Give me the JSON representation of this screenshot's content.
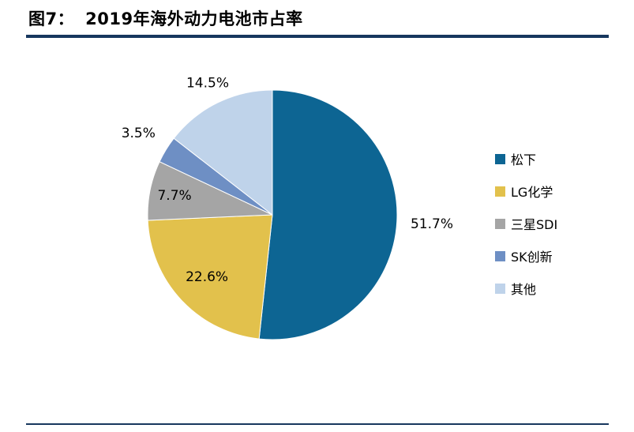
{
  "header": {
    "figure_label": "图7：",
    "title": "2019年海外动力电池市占率"
  },
  "accent_color": "#17375e",
  "chart_data": {
    "type": "pie",
    "title": "2019年海外动力电池市占率",
    "labels": [
      "松下",
      "LG化学",
      "三星SDI",
      "SK创新",
      "其他"
    ],
    "values": [
      51.7,
      22.6,
      7.7,
      3.5,
      14.5
    ],
    "data_labels": [
      "51.7%",
      "22.6%",
      "7.7%",
      "3.5%",
      "14.5%"
    ],
    "colors": [
      "#0d6593",
      "#e2c14c",
      "#a5a5a5",
      "#6e8fc4",
      "#bfd3ea"
    ],
    "legend_position": "right",
    "start_angle_deg": 0,
    "direction": "clockwise",
    "label_placement": [
      "outside",
      "inside",
      "inside",
      "outside",
      "outside"
    ],
    "label_radius_factor": [
      1.28,
      0.72,
      0.8,
      1.26,
      1.18
    ]
  }
}
